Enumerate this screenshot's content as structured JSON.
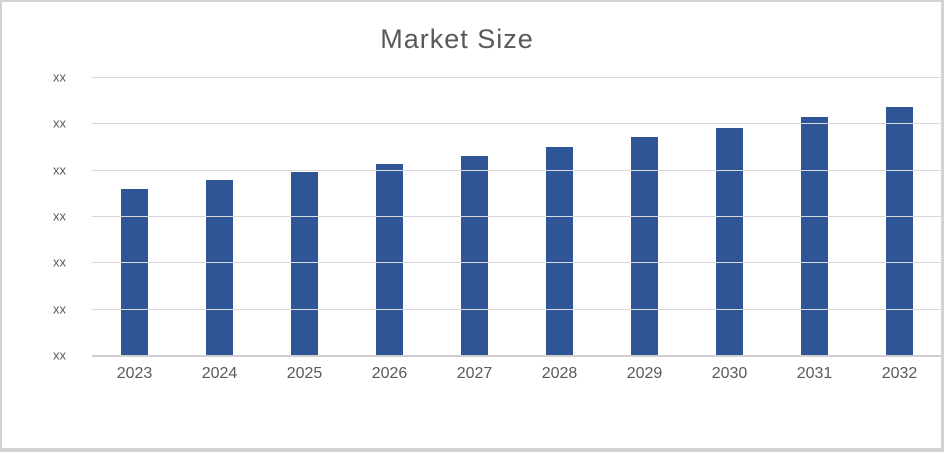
{
  "chart_data": {
    "type": "bar",
    "title": "Market Size",
    "categories": [
      "2023",
      "2024",
      "2025",
      "2026",
      "2027",
      "2028",
      "2029",
      "2030",
      "2031",
      "2032"
    ],
    "values": [
      3.58,
      3.77,
      3.95,
      4.13,
      4.3,
      4.48,
      4.71,
      4.9,
      5.14,
      5.35
    ],
    "values_note": "y-axis values are masked in the source; values estimated in gridline units (1 unit per gridline interval)",
    "y_tick_labels": [
      "xx",
      "xx",
      "xx",
      "xx",
      "xx",
      "xx",
      "xx"
    ],
    "ylim": [
      0,
      6
    ],
    "xlabel": "",
    "ylabel": "",
    "grid": "horizontal",
    "legend": "none",
    "colors": {
      "bar": "#2f5597",
      "gridline": "#d9d9d9",
      "axis_line": "#cfcfcf",
      "axis_text": "#595959",
      "title_text": "#595959",
      "frame_border": "#d2d2d2",
      "background": "#ffffff"
    }
  }
}
